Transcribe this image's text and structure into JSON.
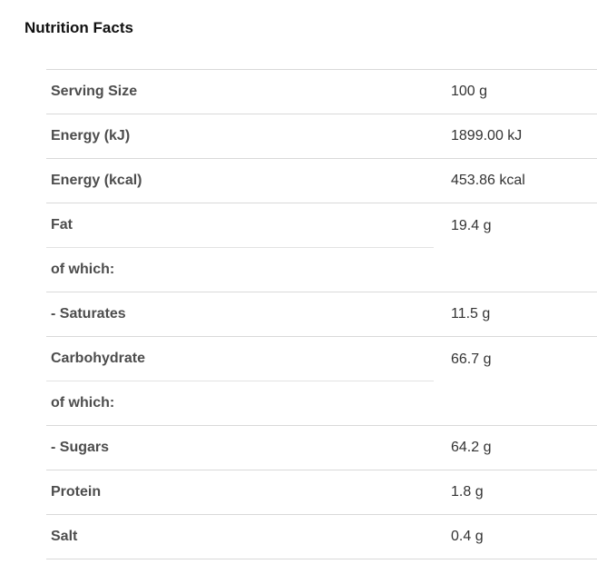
{
  "title": "Nutrition Facts",
  "colors": {
    "title_text": "#111111",
    "label_text": "#4d4d4d",
    "value_text": "#333333",
    "divider_full": "#d9d9d9",
    "divider_partial": "#e3e3e3",
    "background": "#ffffff"
  },
  "table": {
    "rows": [
      {
        "label": "Serving Size",
        "value": "100 g"
      },
      {
        "label": "Energy (kJ)",
        "value": "1899.00 kJ"
      },
      {
        "label": "Energy (kcal)",
        "value": "453.86 kcal"
      },
      {
        "label": "Fat",
        "value": "19.4 g"
      },
      {
        "label": "of which:",
        "value": ""
      },
      {
        "label": "- Saturates",
        "value": "11.5 g"
      },
      {
        "label": "Carbohydrate",
        "value": "66.7 g"
      },
      {
        "label": "of which:",
        "value": ""
      },
      {
        "label": "- Sugars",
        "value": "64.2 g"
      },
      {
        "label": "Protein",
        "value": "1.8 g"
      },
      {
        "label": "Salt",
        "value": "0.4 g"
      }
    ]
  }
}
